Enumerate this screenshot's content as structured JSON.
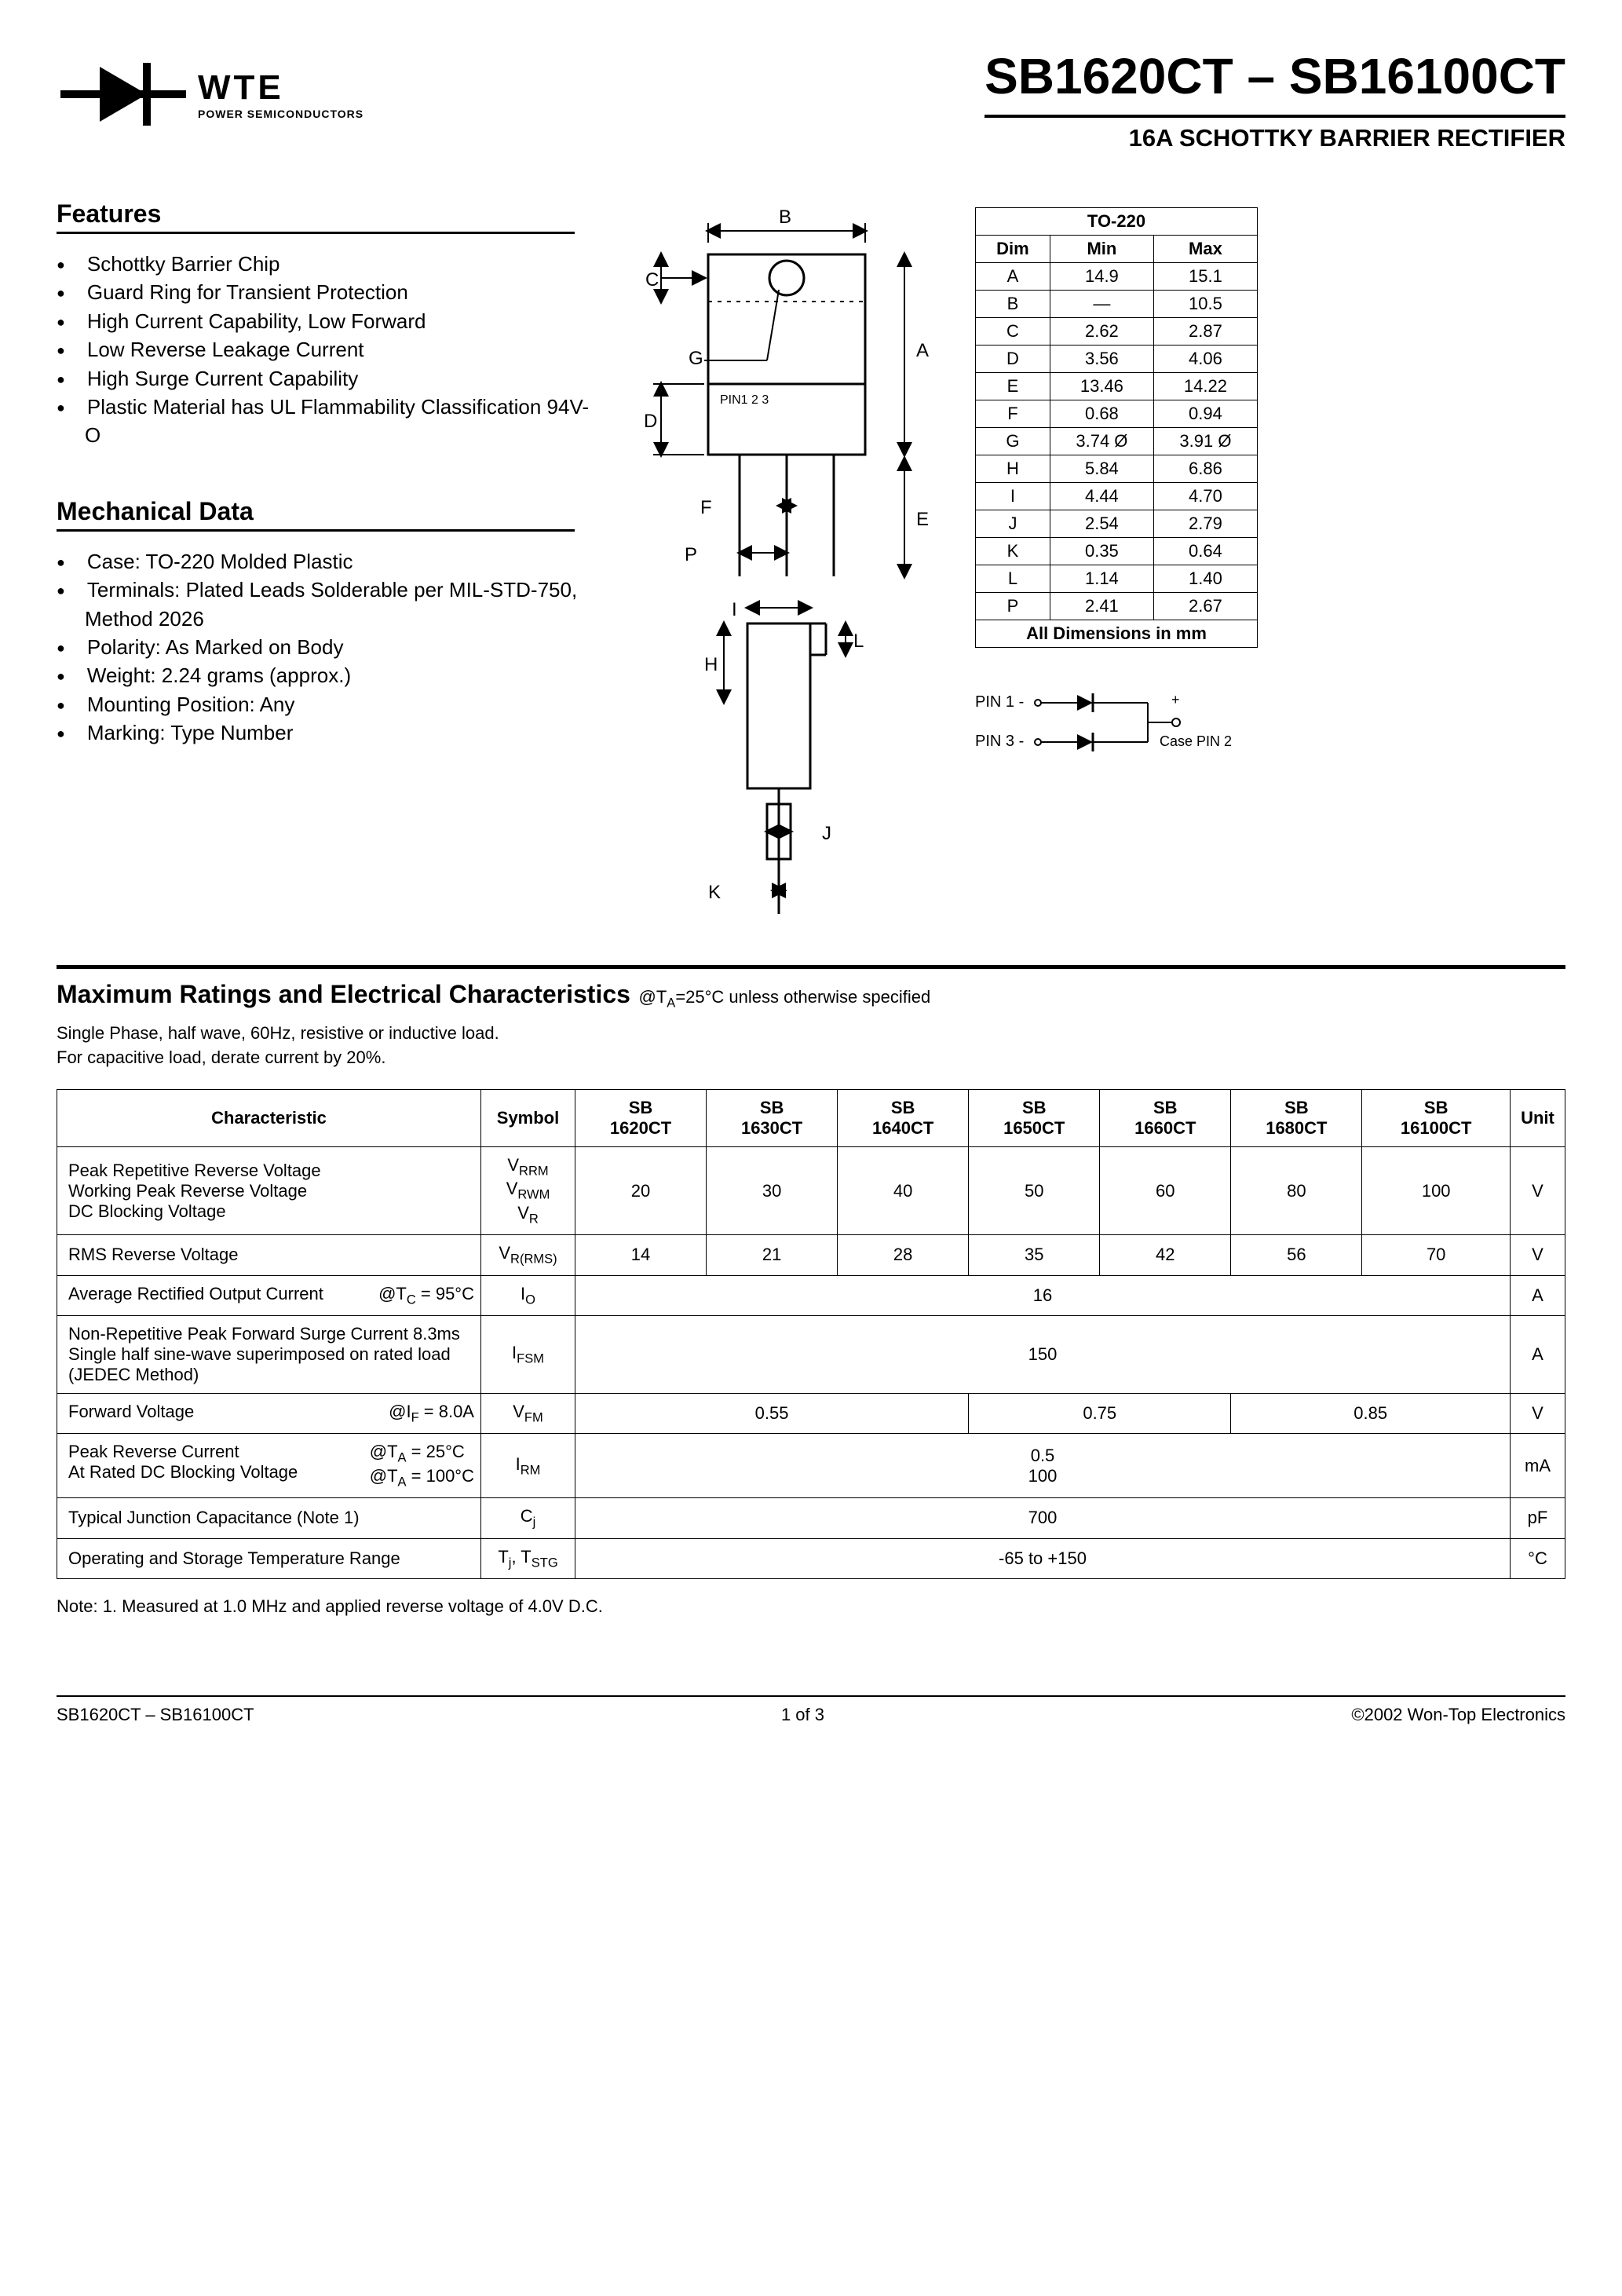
{
  "logo": {
    "brand": "WTE",
    "tagline": "POWER SEMICONDUCTORS"
  },
  "title": {
    "main": "SB1620CT – SB16100CT",
    "sub": "16A SCHOTTKY BARRIER RECTIFIER"
  },
  "features": {
    "heading": "Features",
    "items": [
      "Schottky Barrier Chip",
      "Guard Ring for Transient Protection",
      "High Current Capability, Low Forward",
      "Low Reverse Leakage Current",
      "High Surge Current Capability",
      "Plastic Material has UL Flammability Classification 94V-O"
    ]
  },
  "mech": {
    "heading": "Mechanical Data",
    "items": [
      "Case: TO-220 Molded Plastic",
      "Terminals: Plated Leads Solderable per MIL-STD-750, Method 2026",
      "Polarity: As Marked on Body",
      "Weight: 2.24 grams (approx.)",
      "Mounting Position: Any",
      "Marking: Type Number"
    ]
  },
  "pkg": {
    "title": "TO-220",
    "cols": [
      "Dim",
      "Min",
      "Max"
    ],
    "rows": [
      [
        "A",
        "14.9",
        "15.1"
      ],
      [
        "B",
        "—",
        "10.5"
      ],
      [
        "C",
        "2.62",
        "2.87"
      ],
      [
        "D",
        "3.56",
        "4.06"
      ],
      [
        "E",
        "13.46",
        "14.22"
      ],
      [
        "F",
        "0.68",
        "0.94"
      ],
      [
        "G",
        "3.74 Ø",
        "3.91 Ø"
      ],
      [
        "H",
        "5.84",
        "6.86"
      ],
      [
        "I",
        "4.44",
        "4.70"
      ],
      [
        "J",
        "2.54",
        "2.79"
      ],
      [
        "K",
        "0.35",
        "0.64"
      ],
      [
        "L",
        "1.14",
        "1.40"
      ],
      [
        "P",
        "2.41",
        "2.67"
      ]
    ],
    "footer": "All Dimensions in mm"
  },
  "pkg_drawing": {
    "labels": {
      "A": "A",
      "B": "B",
      "C": "C",
      "D": "D",
      "E": "E",
      "F": "F",
      "G": "G",
      "H": "H",
      "I": "I",
      "J": "J",
      "K": "K",
      "L": "L",
      "P": "P"
    },
    "pins": "PIN1    2      3"
  },
  "pinout": {
    "pin1": "PIN 1 -",
    "pin3": "PIN 3 -",
    "case": "Case PIN 2",
    "plus": "+"
  },
  "ratings": {
    "heading": "Maximum Ratings and Electrical Characteristics",
    "cond": "@T",
    "cond_sub": "A",
    "cond_rest": "=25°C unless otherwise specified",
    "note": "Single Phase, half wave, 60Hz, resistive or inductive load.\nFor capacitive load, derate current by 20%.",
    "headers": [
      "Characteristic",
      "Symbol",
      "SB 1620CT",
      "SB 1630CT",
      "SB 1640CT",
      "SB 1650CT",
      "SB 1660CT",
      "SB 1680CT",
      "SB 16100CT",
      "Unit"
    ]
  },
  "rows": {
    "r1": {
      "char": "Peak Repetitive Reverse Voltage\nWorking Peak Reverse Voltage\nDC Blocking Voltage",
      "syms": [
        "VRRM",
        "VRWM",
        "VR"
      ],
      "vals": [
        "20",
        "30",
        "40",
        "50",
        "60",
        "80",
        "100"
      ],
      "unit": "V"
    },
    "r2": {
      "char": "RMS Reverse Voltage",
      "sym": "VR(RMS)",
      "vals": [
        "14",
        "21",
        "28",
        "35",
        "42",
        "56",
        "70"
      ],
      "unit": "V"
    },
    "r3": {
      "char_main": "Average Rectified Output Current",
      "char_cond": "@TC = 95°C",
      "sym": "IO",
      "val": "16",
      "unit": "A"
    },
    "r4": {
      "char": "Non-Repetitive Peak Forward Surge Current 8.3ms Single half sine-wave superimposed on rated load (JEDEC Method)",
      "sym": "IFSM",
      "val": "150",
      "unit": "A"
    },
    "r5": {
      "char_main": "Forward Voltage",
      "char_cond": "@IF = 8.0A",
      "sym": "VFM",
      "vals": [
        "0.55",
        "0.75",
        "0.85"
      ],
      "unit": "V"
    },
    "r6": {
      "char_main": "Peak Reverse Current\nAt Rated DC Blocking Voltage",
      "char_cond": "@TA = 25°C\n@TA = 100°C",
      "sym": "IRM",
      "val": "0.5\n100",
      "unit": "mA"
    },
    "r7": {
      "char": "Typical Junction Capacitance (Note 1)",
      "sym": "Cj",
      "val": "700",
      "unit": "pF"
    },
    "r8": {
      "char": "Operating and Storage Temperature Range",
      "sym": "Tj, TSTG",
      "val": "-65 to +150",
      "unit": "°C"
    }
  },
  "footnote": "Note:  1. Measured at 1.0 MHz and applied reverse voltage of 4.0V D.C.",
  "footer": {
    "left": "SB1620CT – SB16100CT",
    "center": "1 of 3",
    "right": "©2002 Won-Top Electronics"
  },
  "colors": {
    "text": "#000000",
    "bg": "#ffffff"
  }
}
